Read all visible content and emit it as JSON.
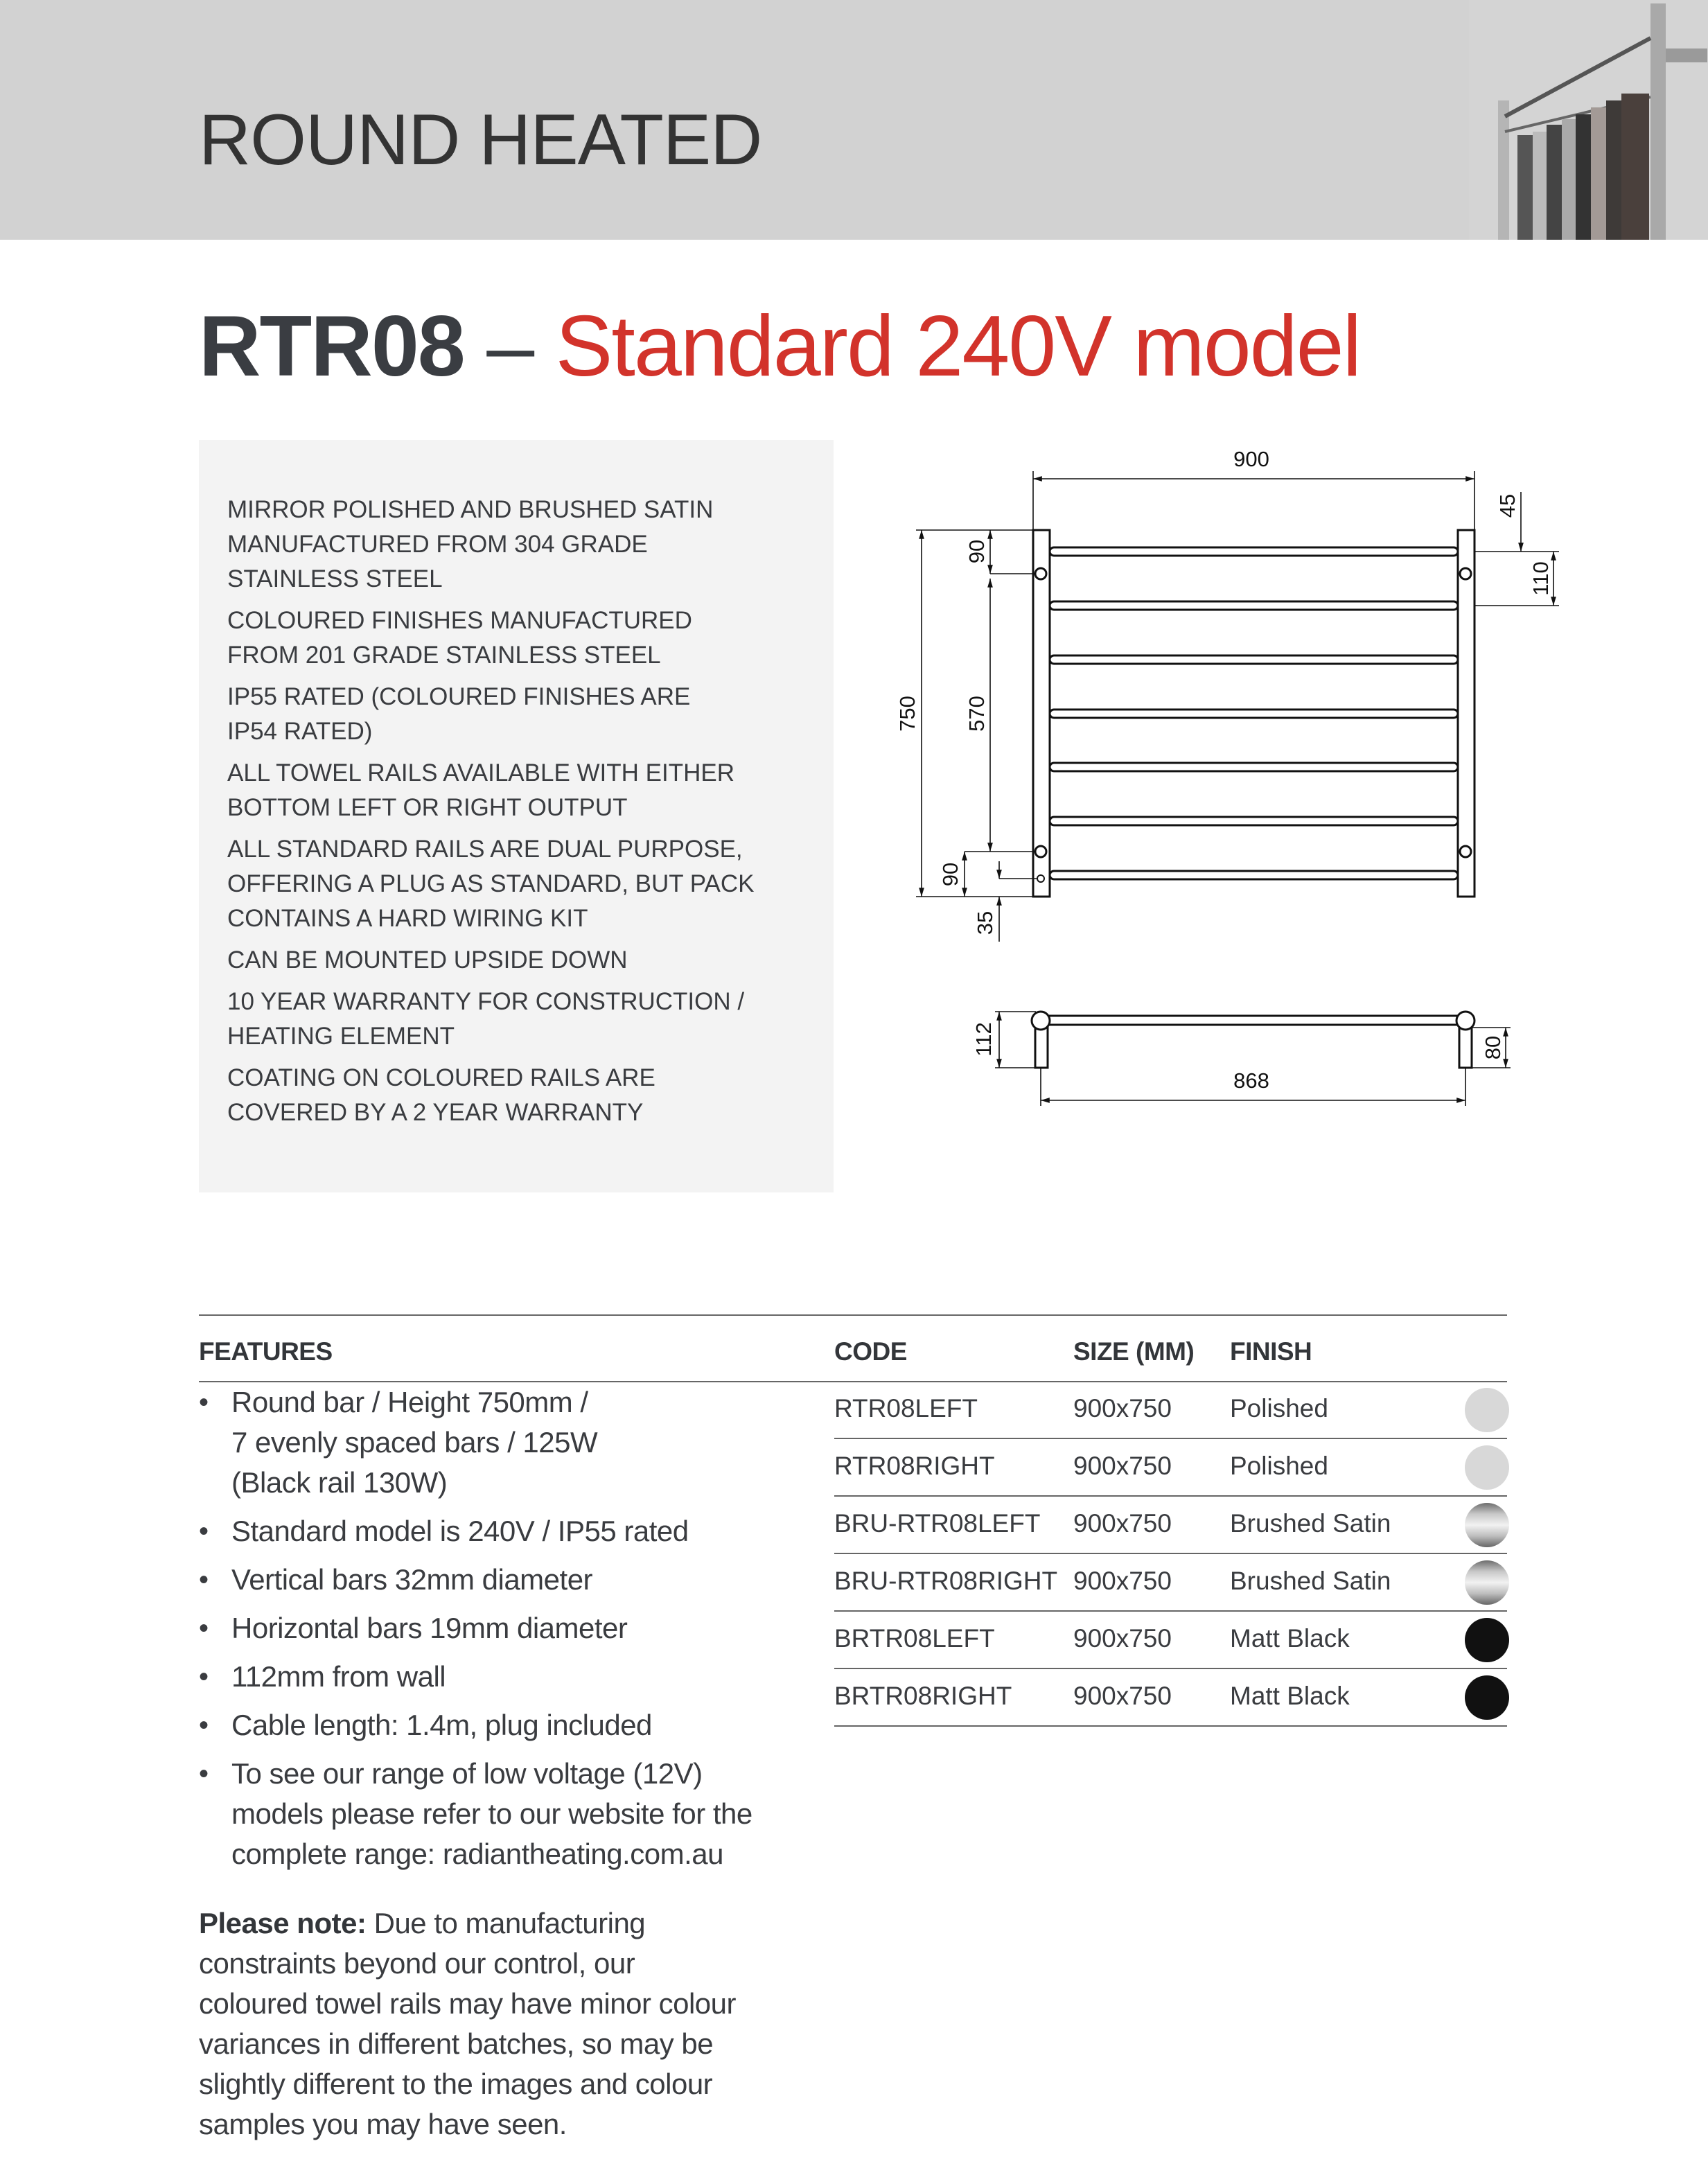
{
  "header": {
    "title": "ROUND HEATED",
    "background_color": "#d2d2d2",
    "photo": "towel-rail-photo"
  },
  "model": {
    "code": "RTR08",
    "dash": " – ",
    "description": "Standard 240V model",
    "accent_color": "#d2332b"
  },
  "specs": [
    [
      "MIRROR POLISHED AND BRUSHED SATIN",
      "MANUFACTURED FROM 304 GRADE",
      "STAINLESS STEEL"
    ],
    [
      "COLOURED FINISHES MANUFACTURED",
      "FROM 201 GRADE STAINLESS STEEL"
    ],
    [
      "IP55 RATED (COLOURED FINISHES ARE",
      "IP54 RATED)"
    ],
    [
      "ALL TOWEL RAILS AVAILABLE WITH EITHER",
      "BOTTOM LEFT OR RIGHT OUTPUT"
    ],
    [
      "ALL STANDARD RAILS ARE DUAL PURPOSE,",
      "OFFERING A PLUG AS STANDARD, BUT PACK",
      "CONTAINS A HARD WIRING KIT"
    ],
    [
      "CAN BE MOUNTED UPSIDE DOWN"
    ],
    [
      "10 YEAR WARRANTY FOR CONSTRUCTION /",
      "HEATING ELEMENT"
    ],
    [
      "COATING ON COLOURED RAILS ARE",
      "COVERED BY A 2 YEAR WARRANTY"
    ]
  ],
  "diagram": {
    "width": "900",
    "height": "750",
    "top_offset": "90",
    "bracket_spacing": "570",
    "bottom_offset": "90",
    "outlet": "35",
    "top_rail": "45",
    "rail_pitch": "110",
    "depth": "112",
    "post_depth": "80",
    "centres": "868"
  },
  "features": {
    "heading": "FEATURES",
    "bullet": "•",
    "items": [
      [
        "Round bar / Height 750mm /",
        "7 evenly spaced bars / 125W",
        "(Black rail 130W)"
      ],
      [
        "Standard model is 240V / IP55 rated"
      ],
      [
        "Vertical bars 32mm diameter"
      ],
      [
        "Horizontal bars 19mm diameter"
      ],
      [
        "112mm from wall"
      ],
      [
        "Cable length: 1.4m, plug included"
      ],
      [
        "To see our range of low voltage (12V)",
        "models please refer to our website for the",
        "complete range: radiantheating.com.au"
      ]
    ],
    "note_label": "Please note:",
    "note_lines": [
      " Due to manufacturing",
      "constraints beyond our control, our",
      "coloured towel rails may have minor colour",
      "variances in different batches, so may be",
      "slightly different to the images and colour",
      "samples you may have seen."
    ]
  },
  "table": {
    "headers": {
      "code": "CODE",
      "size": "SIZE (MM)",
      "finish": "FINISH"
    },
    "rows": [
      {
        "code": "RTR08LEFT",
        "size": "900x750",
        "finish": "Polished",
        "swatch": "polished"
      },
      {
        "code": "RTR08RIGHT",
        "size": "900x750",
        "finish": "Polished",
        "swatch": "polished"
      },
      {
        "code": "BRU-RTR08LEFT",
        "size": "900x750",
        "finish": "Brushed Satin",
        "swatch": "brushed"
      },
      {
        "code": "BRU-RTR08RIGHT",
        "size": "900x750",
        "finish": "Brushed Satin",
        "swatch": "brushed"
      },
      {
        "code": "BRTR08LEFT",
        "size": "900x750",
        "finish": "Matt Black",
        "swatch": "black"
      },
      {
        "code": "BRTR08RIGHT",
        "size": "900x750",
        "finish": "Matt Black",
        "swatch": "black"
      }
    ],
    "swatch_colors": {
      "polished": "#d8d8d8",
      "brushed": "#a8a8a8",
      "black": "#111111"
    }
  }
}
